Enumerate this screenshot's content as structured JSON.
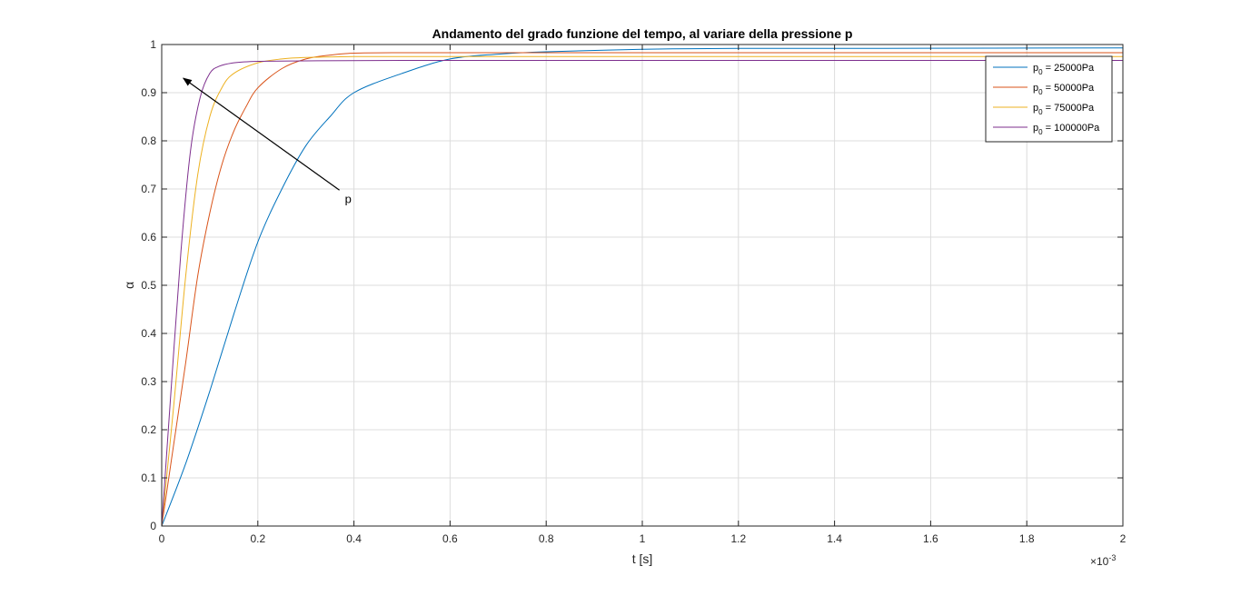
{
  "chart_data": {
    "type": "line",
    "title": "Andamento del grado funzione del tempo, al variare della pressione p",
    "xlabel": "t [s]",
    "ylabel": "α",
    "x_exponent_label": "×10",
    "x_exponent_power": "-3",
    "xlim": [
      0,
      0.002
    ],
    "ylim": [
      0,
      1
    ],
    "xticks": [
      0,
      0.0002,
      0.0004,
      0.0006,
      0.0008,
      0.001,
      0.0012,
      0.0014,
      0.0016,
      0.0018,
      0.002
    ],
    "xtick_labels": [
      "0",
      "0.2",
      "0.4",
      "0.6",
      "0.8",
      "1",
      "1.2",
      "1.4",
      "1.6",
      "1.8",
      "2"
    ],
    "yticks": [
      0,
      0.1,
      0.2,
      0.3,
      0.4,
      0.5,
      0.6,
      0.7,
      0.8,
      0.9,
      1
    ],
    "ytick_labels": [
      "0",
      "0.1",
      "0.2",
      "0.3",
      "0.4",
      "0.5",
      "0.6",
      "0.7",
      "0.8",
      "0.9",
      "1"
    ],
    "grid": true,
    "legend_position": "top-right",
    "series": [
      {
        "name": "p0 = 25000Pa",
        "legend_sym": "p",
        "legend_sub": "0",
        "legend_rest": " = 25000Pa",
        "color": "#0072BD",
        "x": [
          0,
          5e-05,
          0.0001,
          0.00015,
          0.0002,
          0.00025,
          0.0003,
          0.00035,
          0.0004,
          0.0005,
          0.0006,
          0.0007,
          0.0008,
          0.001,
          0.0012,
          0.0015,
          0.002
        ],
        "y": [
          0,
          0.13,
          0.28,
          0.44,
          0.59,
          0.7,
          0.79,
          0.85,
          0.9,
          0.94,
          0.97,
          0.98,
          0.985,
          0.99,
          0.992,
          0.992,
          0.993
        ]
      },
      {
        "name": "p0 = 50000Pa",
        "legend_sym": "p",
        "legend_sub": "0",
        "legend_rest": " = 50000Pa",
        "color": "#D95319",
        "x": [
          0,
          2.5e-05,
          5e-05,
          7.5e-05,
          0.0001,
          0.000125,
          0.00015,
          0.000175,
          0.0002,
          0.00025,
          0.0003,
          0.00035,
          0.0004,
          0.0005,
          0.0006,
          0.001,
          0.002
        ],
        "y": [
          0,
          0.17,
          0.34,
          0.52,
          0.65,
          0.75,
          0.82,
          0.87,
          0.91,
          0.95,
          0.97,
          0.978,
          0.982,
          0.983,
          0.983,
          0.983,
          0.983
        ]
      },
      {
        "name": "p0 = 75000Pa",
        "legend_sym": "p",
        "legend_sub": "0",
        "legend_rest": " = 75000Pa",
        "color": "#EDB120",
        "x": [
          0,
          2.5e-05,
          5e-05,
          7.5e-05,
          0.0001,
          0.000125,
          0.00015,
          0.0002,
          0.00025,
          0.0003,
          0.0004,
          0.0006,
          0.001,
          0.002
        ],
        "y": [
          0,
          0.25,
          0.52,
          0.73,
          0.85,
          0.91,
          0.94,
          0.962,
          0.97,
          0.973,
          0.975,
          0.975,
          0.975,
          0.975
        ]
      },
      {
        "name": "p0 = 100000Pa",
        "legend_sym": "p",
        "legend_sub": "0",
        "legend_rest": " = 100000Pa",
        "color": "#7E2F8E",
        "x": [
          0,
          2e-05,
          4e-05,
          6e-05,
          8e-05,
          0.0001,
          0.00012,
          0.00015,
          0.0002,
          0.0003,
          0.0005,
          0.001,
          0.002
        ],
        "y": [
          0,
          0.29,
          0.57,
          0.78,
          0.89,
          0.94,
          0.955,
          0.962,
          0.965,
          0.966,
          0.967,
          0.967,
          0.967
        ]
      }
    ],
    "annotations": [
      {
        "text": "p",
        "arrow_from": [
          0.0004,
          0.69
        ],
        "arrow_to": [
          4.5e-05,
          0.93
        ]
      }
    ]
  }
}
